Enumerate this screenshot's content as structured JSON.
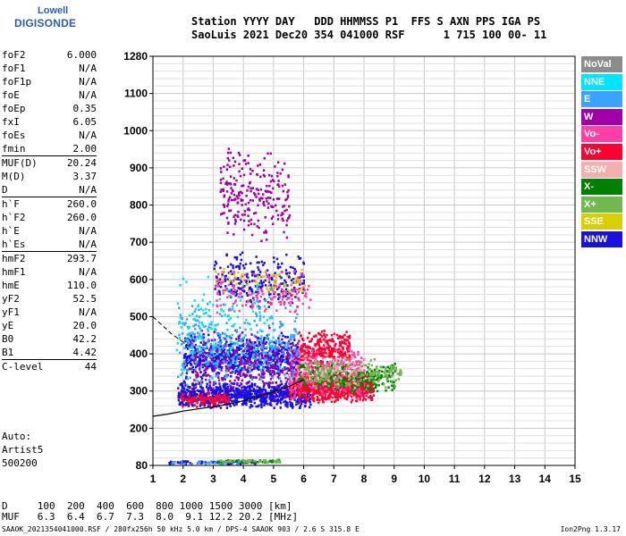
{
  "logo": {
    "line1": "Lowell",
    "line2": "DIGISONDE"
  },
  "header": {
    "line1": "Station YYYY DAY   DDD HHMMSS P1  FFS S AXN PPS IGA PS",
    "line2": "SaoLuis 2021 Dec20 354 041000 RSF      1 715 100 00- 11"
  },
  "params": [
    {
      "k": "foF2",
      "v": "6.000"
    },
    {
      "k": "foF1",
      "v": "N/A"
    },
    {
      "k": "foF1p",
      "v": "N/A"
    },
    {
      "k": "foE",
      "v": "N/A"
    },
    {
      "k": "foEp",
      "v": "0.35"
    },
    {
      "k": "fxI",
      "v": "6.05"
    },
    {
      "k": "foEs",
      "v": "N/A"
    },
    {
      "k": "fmin",
      "v": "2.00"
    },
    {
      "k": "MUF(D)",
      "v": "20.24",
      "sep": true
    },
    {
      "k": "M(D)",
      "v": "3.37"
    },
    {
      "k": "D",
      "v": "N/A"
    },
    {
      "k": "h`F",
      "v": "260.0",
      "sep": true
    },
    {
      "k": "h`F2",
      "v": "260.0"
    },
    {
      "k": "h`E",
      "v": "N/A"
    },
    {
      "k": "h`Es",
      "v": "N/A"
    },
    {
      "k": "hmF2",
      "v": "293.7",
      "sep": true
    },
    {
      "k": "hmF1",
      "v": "N/A"
    },
    {
      "k": "hmE",
      "v": "110.0"
    },
    {
      "k": "yF2",
      "v": "52.5"
    },
    {
      "k": "yF1",
      "v": "N/A"
    },
    {
      "k": "yE",
      "v": "20.0"
    },
    {
      "k": "B0",
      "v": "42.2"
    },
    {
      "k": "B1",
      "v": "4.42"
    },
    {
      "k": "C-level",
      "v": "44",
      "sep": true
    }
  ],
  "auto": {
    "line1": "Auto:",
    "line2": "Artist5",
    "line3": "500200"
  },
  "legend": [
    {
      "label": "NoVal",
      "color": "#8c8c8c"
    },
    {
      "label": "NNE",
      "color": "#00e5ff"
    },
    {
      "label": "E",
      "color": "#3aa2ff"
    },
    {
      "label": "W",
      "color": "#a000a8"
    },
    {
      "label": "Vo-",
      "color": "#ff3fa8"
    },
    {
      "label": "Vo+",
      "color": "#ff0030"
    },
    {
      "label": "SSW",
      "color": "#f4b0ae"
    },
    {
      "label": "X-",
      "color": "#008000"
    },
    {
      "label": "X+",
      "color": "#70b850"
    },
    {
      "label": "SSE",
      "color": "#d8d000"
    },
    {
      "label": "NNW",
      "color": "#1a10e0"
    }
  ],
  "dmuf": {
    "d_line": "D     100  200  400  600  800 1000 1500 3000 [km]",
    "muf_line": "MUF   6.3  6.4  6.7  7.3  8.0  9.1 12.2 20.2 [MHz]"
  },
  "footer": {
    "left": "SAAOK_2021354041000.RSF / 280fx256h 50 kHz 5.0 km / DPS-4 SAAOK 903 / 2.6 S 315.8 E",
    "right": "Ion2Png 1.3.17"
  },
  "chart_data": {
    "type": "scatter",
    "xlabel": "",
    "ylabel": "",
    "xlim": [
      1,
      15
    ],
    "ylim": [
      80,
      1280
    ],
    "x_ticks": [
      1,
      2,
      3,
      4,
      5,
      6,
      7,
      8,
      9,
      10,
      11,
      12,
      13,
      14,
      15
    ],
    "y_ticks": [
      80,
      200,
      300,
      400,
      500,
      600,
      700,
      800,
      900,
      1000,
      1100,
      1280
    ],
    "grid": true,
    "series": [
      {
        "name": "NNW",
        "color": "#1a10e0",
        "clusters": [
          {
            "x": [
              1.8,
              6.2
            ],
            "y": [
              255,
              330
            ],
            "n": 900
          },
          {
            "x": [
              2.0,
              5.8
            ],
            "y": [
              330,
              460
            ],
            "n": 700
          },
          {
            "x": [
              3.0,
              6.0
            ],
            "y": [
              520,
              680
            ],
            "n": 260
          },
          {
            "x": [
              1.5,
              4.5
            ],
            "y": [
              88,
              98
            ],
            "n": 60
          }
        ]
      },
      {
        "name": "Vo+",
        "color": "#ff0030",
        "clusters": [
          {
            "x": [
              5.5,
              8.3
            ],
            "y": [
              270,
              360
            ],
            "n": 800
          },
          {
            "x": [
              5.8,
              7.5
            ],
            "y": [
              360,
              470
            ],
            "n": 300
          },
          {
            "x": [
              1.9,
              3.5
            ],
            "y": [
              260,
              300
            ],
            "n": 120
          }
        ]
      },
      {
        "name": "Vo-",
        "color": "#ff3fa8",
        "clusters": [
          {
            "x": [
              5.5,
              8.0
            ],
            "y": [
              280,
              420
            ],
            "n": 350
          },
          {
            "x": [
              3.0,
              6.2
            ],
            "y": [
              500,
              640
            ],
            "n": 160
          }
        ]
      },
      {
        "name": "W",
        "color": "#a000a8",
        "clusters": [
          {
            "x": [
              2.2,
              5.8
            ],
            "y": [
              280,
              480
            ],
            "n": 320
          },
          {
            "x": [
              3.2,
              5.5
            ],
            "y": [
              700,
              960
            ],
            "n": 240
          }
        ]
      },
      {
        "name": "E",
        "color": "#3aa2ff",
        "clusters": [
          {
            "x": [
              1.8,
              5.8
            ],
            "y": [
              300,
              560
            ],
            "n": 320
          },
          {
            "x": [
              1.6,
              4.0
            ],
            "y": [
              86,
              100
            ],
            "n": 40
          }
        ]
      },
      {
        "name": "NNE",
        "color": "#00e5ff",
        "clusters": [
          {
            "x": [
              1.7,
              5.0
            ],
            "y": [
              330,
              620
            ],
            "n": 160
          }
        ]
      },
      {
        "name": "X-",
        "color": "#008000",
        "clusters": [
          {
            "x": [
              5.8,
              9.0
            ],
            "y": [
              290,
              380
            ],
            "n": 220
          },
          {
            "x": [
              3.0,
              5.2
            ],
            "y": [
              90,
              102
            ],
            "n": 60
          }
        ]
      },
      {
        "name": "X+",
        "color": "#70b850",
        "clusters": [
          {
            "x": [
              6.0,
              9.2
            ],
            "y": [
              310,
              390
            ],
            "n": 200
          },
          {
            "x": [
              3.2,
              5.2
            ],
            "y": [
              92,
              102
            ],
            "n": 40
          }
        ]
      },
      {
        "name": "SSE",
        "color": "#d8d000",
        "clusters": [
          {
            "x": [
              3.0,
              6.0
            ],
            "y": [
              560,
              640
            ],
            "n": 60
          }
        ]
      },
      {
        "name": "SSW",
        "color": "#f4b0ae",
        "clusters": [
          {
            "x": [
              5.5,
              8.0
            ],
            "y": [
              300,
              420
            ],
            "n": 60
          }
        ]
      }
    ],
    "trace": {
      "x": [
        1,
        1.5,
        2,
        2.5,
        3,
        3.5,
        4,
        4.5,
        5,
        5.5,
        6
      ],
      "y": [
        232,
        238,
        246,
        252,
        258,
        265,
        274,
        285,
        298,
        312,
        330
      ]
    },
    "trace_dashed": {
      "x": [
        1,
        1.6,
        2.2
      ],
      "y": [
        500,
        455,
        420
      ]
    }
  }
}
